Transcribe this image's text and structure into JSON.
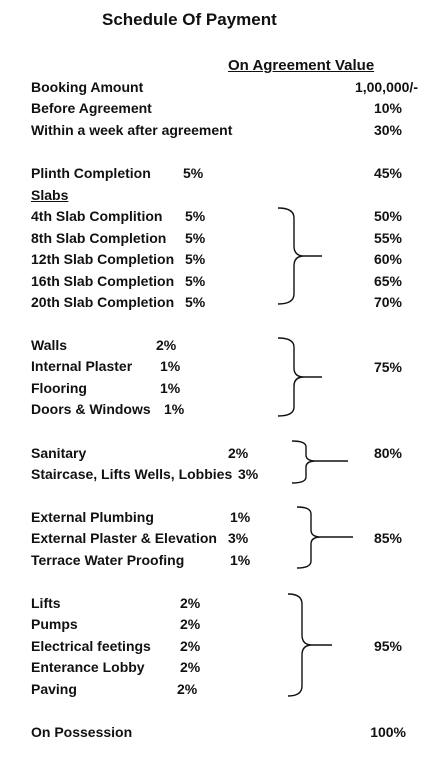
{
  "title": "Schedule Of Payment",
  "header": "On Agreement Value",
  "rows": {
    "booking": {
      "label": "Booking Amount",
      "value": "1,00,000/-"
    },
    "before": {
      "label": "Before Agreement",
      "value": "10%"
    },
    "within": {
      "label": "Within a week after agreement",
      "value": "30%"
    },
    "plinth": {
      "label": "Plinth Completion",
      "pct": "5%",
      "value": "45%"
    },
    "slabs_heading": "Slabs",
    "possession": {
      "label": "On Possession",
      "value": "100%"
    }
  },
  "groups": [
    {
      "items": [
        {
          "label": "4th Slab Complition",
          "pct": "5%",
          "value": "50%"
        },
        {
          "label": "8th Slab Completion",
          "pct": "5%",
          "value": "55%"
        },
        {
          "label": "12th Slab Completion",
          "pct": "5%",
          "value": "60%"
        },
        {
          "label": "16th Slab Completion",
          "pct": "5%",
          "value": "65%"
        },
        {
          "label": "20th Slab Completion",
          "pct": "5%",
          "value": "70%"
        }
      ]
    },
    {
      "value": "75%",
      "items": [
        {
          "label": "Walls",
          "pct": "2%"
        },
        {
          "label": "Internal Plaster",
          "pct": "1%"
        },
        {
          "label": "Flooring",
          "pct": "1%"
        },
        {
          "label": "Doors & Windows",
          "pct": "1%"
        }
      ]
    },
    {
      "value": "80%",
      "items": [
        {
          "label": "Sanitary",
          "pct": "2%"
        },
        {
          "label": "Staircase, Lifts Wells, Lobbies",
          "pct": "3%"
        }
      ]
    },
    {
      "value": "85%",
      "items": [
        {
          "label": "External Plumbing",
          "pct": "1%"
        },
        {
          "label": "External Plaster & Elevation",
          "pct": "3%"
        },
        {
          "label": "Terrace Water Proofing",
          "pct": "1%"
        }
      ]
    },
    {
      "value": "95%",
      "items": [
        {
          "label": "Lifts",
          "pct": "2%"
        },
        {
          "label": "Pumps",
          "pct": "2%"
        },
        {
          "label": "Electrical  feetings",
          "pct": "2%"
        },
        {
          "label": "Enterance Lobby",
          "pct": "2%"
        },
        {
          "label": "Paving",
          "pct": "2%"
        }
      ]
    }
  ]
}
